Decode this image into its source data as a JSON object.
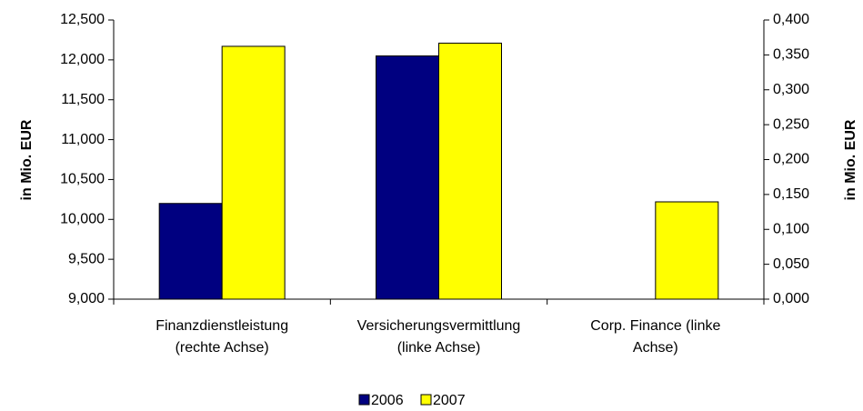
{
  "chart_data": {
    "type": "bar",
    "categories": [
      [
        "Finanzdienstleistung",
        "(rechte Achse)"
      ],
      [
        "Versicherungsvermittlung",
        "(linke Achse)"
      ],
      [
        "Corp. Finance (linke",
        "Achse)"
      ]
    ],
    "series": [
      {
        "name": "2006",
        "color": "#000080",
        "values": [
          10200,
          12050,
          null
        ]
      },
      {
        "name": "2007",
        "color": "#ffff00",
        "values": [
          12170,
          12210,
          10220
        ]
      }
    ],
    "ylabel": "in Mio. EUR",
    "y2label": "in Mio. EUR",
    "ylim": [
      9000,
      12500
    ],
    "yticks": [
      {
        "value": 9000,
        "label": "9,000"
      },
      {
        "value": 9500,
        "label": "9,500"
      },
      {
        "value": 10000,
        "label": "10,000"
      },
      {
        "value": 10500,
        "label": "10,500"
      },
      {
        "value": 11000,
        "label": "11,000"
      },
      {
        "value": 11500,
        "label": "11,500"
      },
      {
        "value": 12000,
        "label": "12,000"
      },
      {
        "value": 12500,
        "label": "12,500"
      }
    ],
    "y2lim": [
      0,
      0.4
    ],
    "y2ticks": [
      {
        "value": 0,
        "label": "0,000"
      },
      {
        "value": 0.05,
        "label": "0,050"
      },
      {
        "value": 0.1,
        "label": "0,100"
      },
      {
        "value": 0.15,
        "label": "0,150"
      },
      {
        "value": 0.2,
        "label": "0,200"
      },
      {
        "value": 0.25,
        "label": "0,250"
      },
      {
        "value": 0.3,
        "label": "0,300"
      },
      {
        "value": 0.35,
        "label": "0,350"
      },
      {
        "value": 0.4,
        "label": "0,400"
      }
    ],
    "legend": "bottom"
  }
}
